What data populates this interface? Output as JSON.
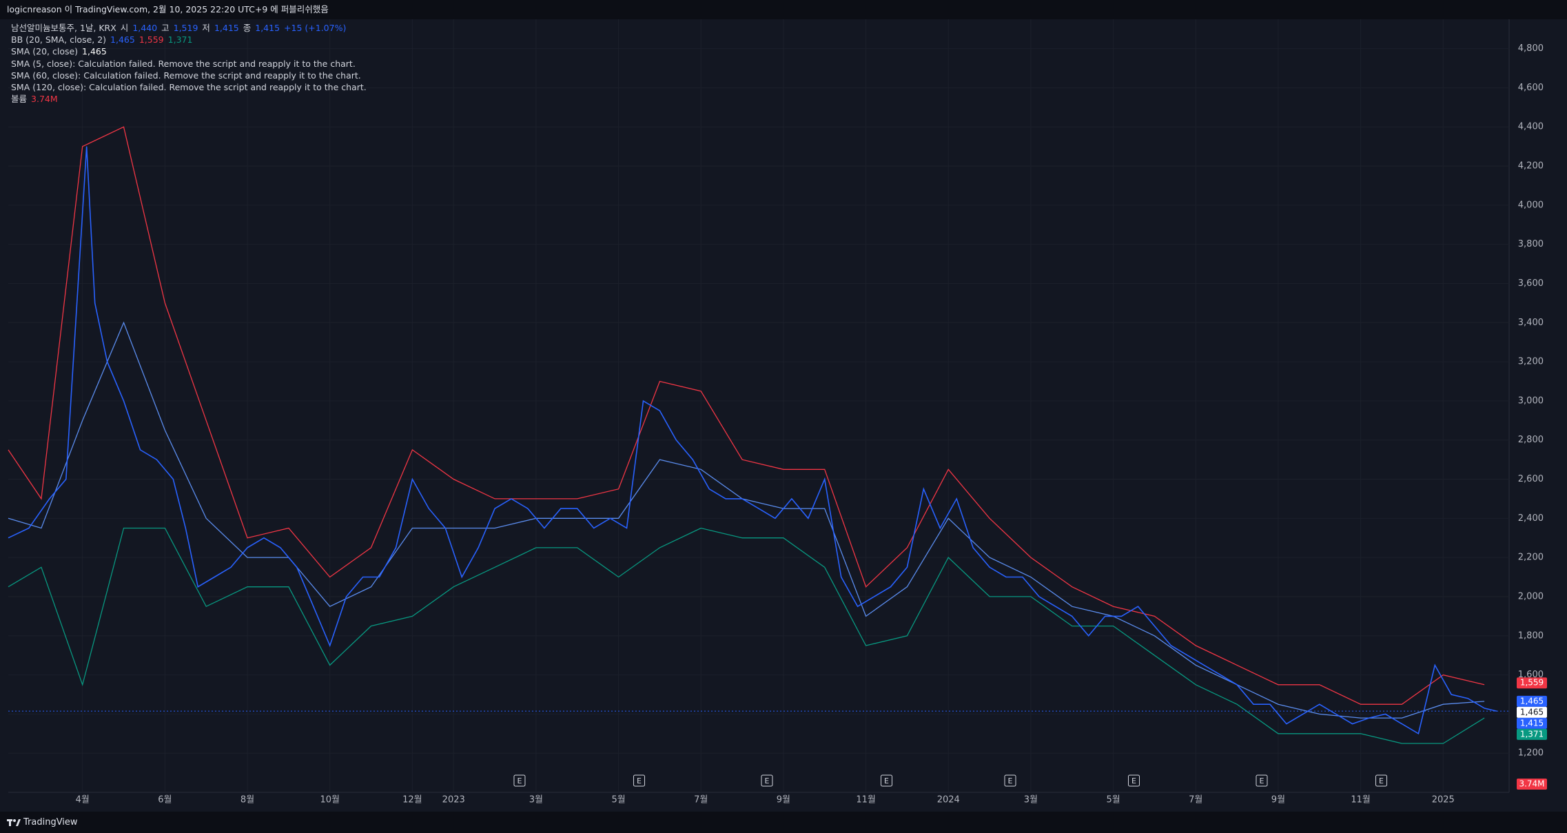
{
  "header": {
    "title": "logicnreason 이 TradingView.com, 2월 10, 2025 22:20 UTC+9 에 퍼블리쉬했음"
  },
  "legend": {
    "rows": [
      [
        {
          "text": "남선알미늄보통주, 1날, KRX",
          "color": "#d1d4dc"
        },
        {
          "text": "시",
          "color": "#d1d4dc"
        },
        {
          "text": "1,440",
          "color": "#2962ff"
        },
        {
          "text": "고",
          "color": "#d1d4dc"
        },
        {
          "text": "1,519",
          "color": "#2962ff"
        },
        {
          "text": "저",
          "color": "#d1d4dc"
        },
        {
          "text": "1,415",
          "color": "#2962ff"
        },
        {
          "text": "종",
          "color": "#d1d4dc"
        },
        {
          "text": "1,415",
          "color": "#2962ff"
        },
        {
          "text": "+15 (+1.07%)",
          "color": "#2962ff"
        }
      ],
      [
        {
          "text": "BB (20, SMA, close, 2)",
          "color": "#d1d4dc"
        },
        {
          "text": "1,465",
          "color": "#2962ff"
        },
        {
          "text": "1,559",
          "color": "#f23645"
        },
        {
          "text": "1,371",
          "color": "#089981"
        }
      ],
      [
        {
          "text": "SMA (20, close)",
          "color": "#d1d4dc"
        },
        {
          "text": "1,465",
          "color": "#ffffff"
        }
      ],
      [
        {
          "text": "SMA (5, close): Calculation failed. Remove the script and reapply it to the chart.",
          "color": "#d1d4dc"
        }
      ],
      [
        {
          "text": "SMA (60, close): Calculation failed. Remove the script and reapply it to the chart.",
          "color": "#d1d4dc"
        }
      ],
      [
        {
          "text": "SMA (120, close): Calculation failed. Remove the script and reapply it to the chart.",
          "color": "#d1d4dc"
        }
      ],
      [
        {
          "text": "볼륨",
          "color": "#d1d4dc"
        },
        {
          "text": "3.74M",
          "color": "#f23645"
        }
      ]
    ]
  },
  "footer": {
    "brand": "TradingView"
  },
  "chart_data": {
    "type": "line",
    "xlim": [
      -1.8,
      34.6
    ],
    "ylim": [
      1000,
      4950
    ],
    "xticks": [
      {
        "value": 0,
        "label": "4월"
      },
      {
        "value": 2,
        "label": "6월"
      },
      {
        "value": 4,
        "label": "8월"
      },
      {
        "value": 6,
        "label": "10월"
      },
      {
        "value": 8,
        "label": "12월"
      },
      {
        "value": 9,
        "label": "2023"
      },
      {
        "value": 11,
        "label": "3월"
      },
      {
        "value": 13,
        "label": "5월"
      },
      {
        "value": 15,
        "label": "7월"
      },
      {
        "value": 17,
        "label": "9월"
      },
      {
        "value": 19,
        "label": "11월"
      },
      {
        "value": 21,
        "label": "2024"
      },
      {
        "value": 23,
        "label": "3월"
      },
      {
        "value": 25,
        "label": "5월"
      },
      {
        "value": 27,
        "label": "7월"
      },
      {
        "value": 29,
        "label": "9월"
      },
      {
        "value": 31,
        "label": "11월"
      },
      {
        "value": 33,
        "label": "2025"
      }
    ],
    "yticks": [
      {
        "value": 1200,
        "label": "1,200"
      },
      {
        "value": 1400,
        "label": "1,400"
      },
      {
        "value": 1600,
        "label": "1,600"
      },
      {
        "value": 1800,
        "label": "1,800"
      },
      {
        "value": 2000,
        "label": "2,000"
      },
      {
        "value": 2200,
        "label": "2,200"
      },
      {
        "value": 2400,
        "label": "2,400"
      },
      {
        "value": 2600,
        "label": "2,600"
      },
      {
        "value": 2800,
        "label": "2,800"
      },
      {
        "value": 3000,
        "label": "3,000"
      },
      {
        "value": 3200,
        "label": "3,200"
      },
      {
        "value": 3400,
        "label": "3,400"
      },
      {
        "value": 3600,
        "label": "3,600"
      },
      {
        "value": 3800,
        "label": "3,800"
      },
      {
        "value": 4000,
        "label": "4,000"
      },
      {
        "value": 4200,
        "label": "4,200"
      },
      {
        "value": 4400,
        "label": "4,400"
      },
      {
        "value": 4600,
        "label": "4,600"
      },
      {
        "value": 4800,
        "label": "4,800"
      }
    ],
    "grid": true,
    "series": [
      {
        "color": "#f23645",
        "x": [
          -1.8,
          -1,
          0,
          1,
          2,
          3,
          4,
          5,
          6,
          7,
          8,
          9,
          10,
          11,
          12,
          13,
          14,
          15,
          16,
          17,
          18,
          19,
          20,
          21,
          22,
          23,
          24,
          25,
          26,
          27,
          28,
          29,
          30,
          31,
          32,
          33,
          34
        ],
        "values": [
          2750,
          2500,
          4300,
          4400,
          3500,
          2900,
          2300,
          2350,
          2100,
          2250,
          2750,
          2600,
          2500,
          2500,
          2500,
          2550,
          3100,
          3050,
          2700,
          2650,
          2650,
          2050,
          2250,
          2650,
          2400,
          2200,
          2050,
          1950,
          1900,
          1750,
          1650,
          1550,
          1550,
          1450,
          1450,
          1600,
          1550
        ]
      },
      {
        "color": "#089981",
        "x": [
          -1.8,
          -1,
          0,
          1,
          2,
          3,
          4,
          5,
          6,
          7,
          8,
          9,
          10,
          11,
          12,
          13,
          14,
          15,
          16,
          17,
          18,
          19,
          20,
          21,
          22,
          23,
          24,
          25,
          26,
          27,
          28,
          29,
          30,
          31,
          32,
          33,
          34
        ],
        "values": [
          2050,
          2150,
          1550,
          2350,
          2350,
          1950,
          2050,
          2050,
          1650,
          1850,
          1900,
          2050,
          2150,
          2250,
          2250,
          2100,
          2250,
          2350,
          2300,
          2300,
          2150,
          1750,
          1800,
          2200,
          2000,
          2000,
          1850,
          1850,
          1700,
          1550,
          1450,
          1300,
          1300,
          1300,
          1250,
          1250,
          1380
        ]
      },
      {
        "color": "#5b8def",
        "x": [
          -1.8,
          -1,
          0,
          1,
          2,
          3,
          4,
          5,
          6,
          7,
          8,
          9,
          10,
          11,
          12,
          13,
          14,
          15,
          16,
          17,
          18,
          19,
          20,
          21,
          22,
          23,
          24,
          25,
          26,
          27,
          28,
          29,
          30,
          31,
          32,
          33,
          34
        ],
        "values": [
          2400,
          2350,
          2900,
          3400,
          2850,
          2400,
          2200,
          2200,
          1950,
          2050,
          2350,
          2350,
          2350,
          2400,
          2400,
          2400,
          2700,
          2650,
          2500,
          2450,
          2450,
          1900,
          2050,
          2400,
          2200,
          2100,
          1950,
          1900,
          1800,
          1650,
          1550,
          1450,
          1400,
          1380,
          1380,
          1450,
          1465
        ]
      },
      {
        "color": "#2962ff",
        "x": [
          -1.8,
          -1.3,
          -0.8,
          -0.4,
          0.1,
          0.3,
          0.6,
          1,
          1.4,
          1.8,
          2.2,
          2.5,
          2.8,
          3.2,
          3.6,
          4,
          4.4,
          4.8,
          5.2,
          5.6,
          6,
          6.4,
          6.8,
          7.2,
          7.6,
          8,
          8.4,
          8.8,
          9.2,
          9.6,
          10,
          10.4,
          10.8,
          11.2,
          11.6,
          12,
          12.4,
          12.8,
          13.2,
          13.6,
          14,
          14.4,
          14.8,
          15.2,
          15.6,
          16,
          16.4,
          16.8,
          17.2,
          17.6,
          18,
          18.4,
          18.8,
          19.2,
          19.6,
          20,
          20.4,
          20.8,
          21.2,
          21.6,
          22,
          22.4,
          22.8,
          23.2,
          23.6,
          24,
          24.4,
          24.8,
          25.2,
          25.6,
          26,
          26.4,
          26.8,
          27.2,
          27.6,
          28,
          28.4,
          28.8,
          29.2,
          29.6,
          30,
          30.4,
          30.8,
          31.2,
          31.6,
          32,
          32.4,
          32.8,
          33.2,
          33.6,
          34,
          34.3
        ],
        "values": [
          2300,
          2350,
          2500,
          2600,
          4300,
          3500,
          3200,
          3000,
          2750,
          2700,
          2600,
          2350,
          2050,
          2100,
          2150,
          2250,
          2300,
          2250,
          2150,
          1950,
          1750,
          2000,
          2100,
          2100,
          2250,
          2600,
          2450,
          2350,
          2100,
          2250,
          2450,
          2500,
          2450,
          2350,
          2450,
          2450,
          2350,
          2400,
          2350,
          3000,
          2950,
          2800,
          2700,
          2550,
          2500,
          2500,
          2450,
          2400,
          2500,
          2400,
          2600,
          2100,
          1950,
          2000,
          2050,
          2150,
          2550,
          2350,
          2500,
          2250,
          2150,
          2100,
          2100,
          2000,
          1950,
          1900,
          1800,
          1900,
          1900,
          1950,
          1850,
          1750,
          1700,
          1650,
          1600,
          1550,
          1450,
          1450,
          1350,
          1400,
          1450,
          1400,
          1350,
          1380,
          1400,
          1350,
          1300,
          1650,
          1500,
          1480,
          1430,
          1415
        ]
      }
    ],
    "events": [
      {
        "x": 10.6,
        "label": "E"
      },
      {
        "x": 13.5,
        "label": "E"
      },
      {
        "x": 16.6,
        "label": "E"
      },
      {
        "x": 19.5,
        "label": "E"
      },
      {
        "x": 22.5,
        "label": "E"
      },
      {
        "x": 25.5,
        "label": "E"
      },
      {
        "x": 28.6,
        "label": "E"
      },
      {
        "x": 31.5,
        "label": "E"
      }
    ],
    "price_labels": [
      {
        "value": 1559,
        "label": "1,559",
        "color": "#f23645"
      },
      {
        "value": 1465,
        "label": "1,465",
        "color": "#2962ff"
      },
      {
        "value": 1465,
        "label": "1,465",
        "color": "#ffffff"
      },
      {
        "value": 1415,
        "label": "1,415",
        "color": "#2962ff"
      },
      {
        "value": 1371,
        "label": "1,371",
        "color": "#089981"
      }
    ],
    "volume_label": {
      "label": "3.74M",
      "color": "#f23645"
    }
  }
}
